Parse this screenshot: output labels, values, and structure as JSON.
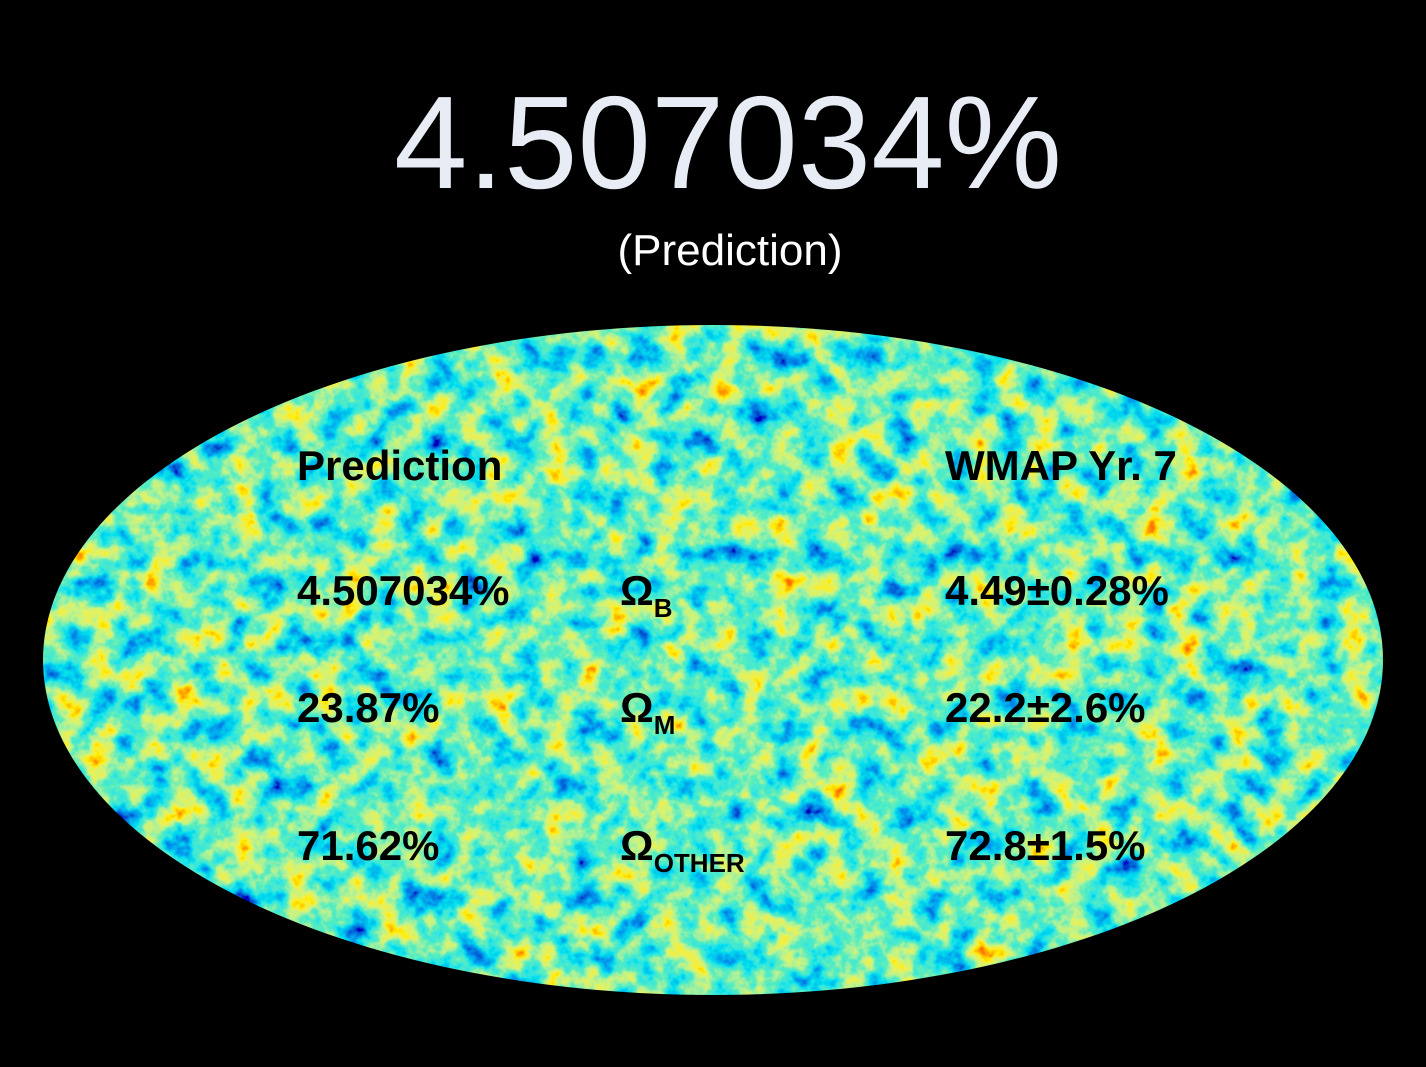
{
  "header": {
    "title": "4.507034%",
    "subtitle": "(Prediction)"
  },
  "table": {
    "headers": {
      "prediction": "Prediction",
      "wmap": "WMAP Yr. 7"
    },
    "rows": [
      {
        "prediction": "4.507034%",
        "symbol": "Ω",
        "subscript": "B",
        "wmap": "4.49±0.28%"
      },
      {
        "prediction": "23.87%",
        "symbol": "Ω",
        "subscript": "M",
        "wmap": "22.2±2.6%"
      },
      {
        "prediction": "71.62%",
        "symbol": "Ω",
        "subscript": "OTHER",
        "wmap": "72.8±1.5%"
      }
    ]
  }
}
